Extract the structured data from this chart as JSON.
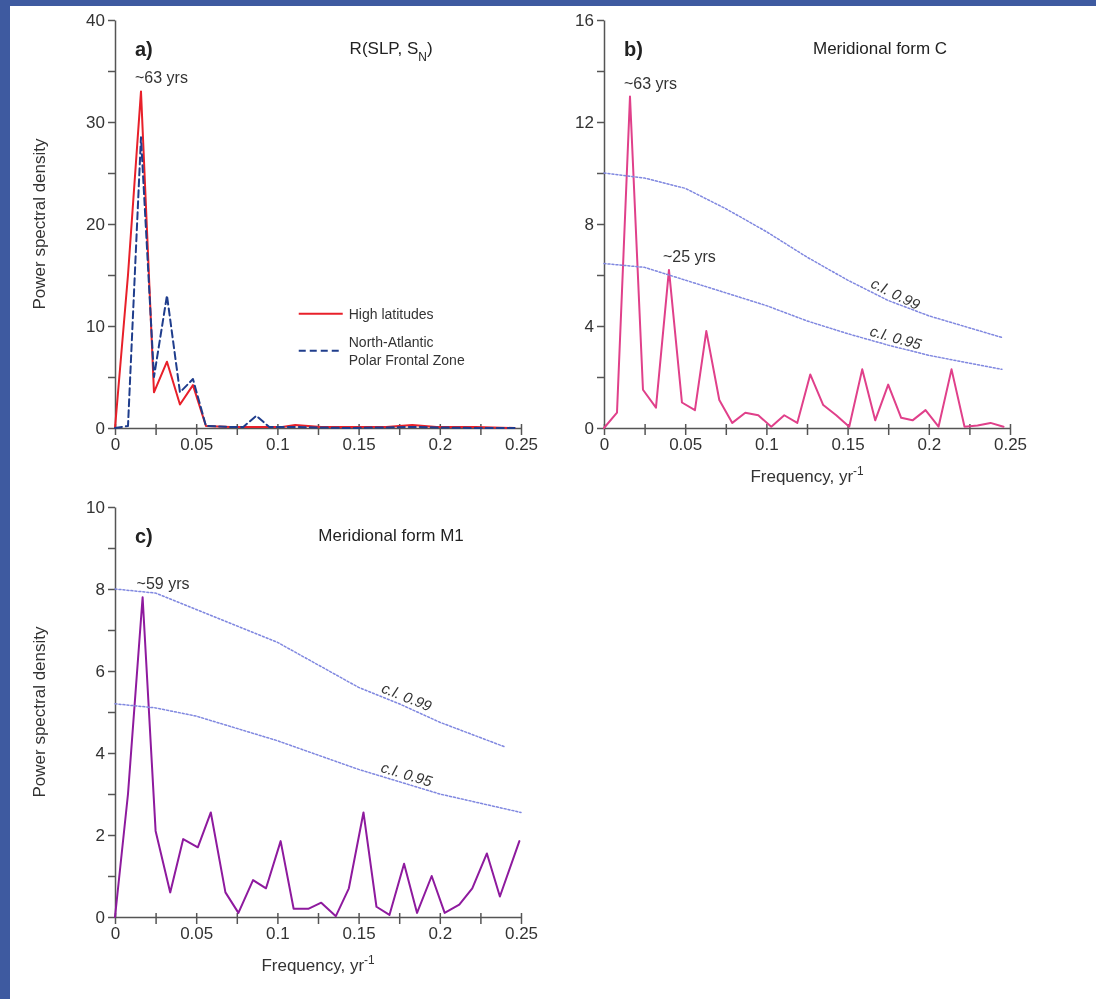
{
  "chart_data": [
    {
      "type": "line",
      "title": "R(SLP, S$_{N}$)",
      "ylabel": "Power spectral density",
      "xlim": [
        0,
        0.25
      ],
      "ylim": [
        0,
        40
      ],
      "xticks": [
        0,
        {
          "value": 0.025,
          "label": null
        },
        0.05,
        {
          "value": 0.075,
          "label": null
        },
        0.1,
        {
          "value": 0.125,
          "label": null
        },
        0.15,
        {
          "value": 0.175,
          "label": null
        },
        0.2,
        {
          "value": 0.225,
          "label": null
        },
        0.25
      ],
      "yticks": [
        0,
        {
          "value": 5,
          "label": null
        },
        10,
        {
          "value": 15,
          "label": null
        },
        20,
        {
          "value": 25,
          "label": null
        },
        30,
        {
          "value": 35,
          "label": null
        },
        40
      ],
      "legend": "right",
      "annotations": [
        "a)",
        {
          "text": "~63 yrs",
          "x": 0.016,
          "y": 33
        }
      ],
      "series": [
        {
          "name": "High latitudes",
          "color": "#e8202a",
          "line_style": "solid",
          "x": [
            0,
            0.008,
            0.016,
            0.024,
            0.032,
            0.04,
            0.048,
            0.056,
            0.071,
            0.087,
            0.103,
            0.111,
            0.127,
            0.143,
            0.167,
            0.183,
            0.198,
            0.222,
            0.246
          ],
          "values": [
            0,
            15,
            33,
            3.5,
            6.5,
            2.3,
            4.2,
            0.2,
            0.1,
            0.1,
            0.1,
            0.3,
            0.1,
            0.1,
            0.1,
            0.3,
            0.1,
            0.1,
            0
          ]
        },
        {
          "name": "North-Atlantic Polar Frontal Zone",
          "color": "#1f3d8c",
          "line_style": "dashed",
          "x": [
            0,
            0.008,
            0.016,
            0.024,
            0.032,
            0.04,
            0.048,
            0.056,
            0.071,
            0.079,
            0.087,
            0.095,
            0.111,
            0.143,
            0.183,
            0.222,
            0.246
          ],
          "values": [
            0,
            0.2,
            28.5,
            5,
            13,
            3.5,
            4.8,
            0.2,
            0.1,
            0.1,
            1.2,
            0.1,
            0.1,
            0,
            0.1,
            0,
            0
          ]
        }
      ]
    },
    {
      "type": "line",
      "title": "Meridional form C",
      "xlabel": "Frequency, yr$^{-1}$",
      "xlim": [
        0,
        0.25
      ],
      "ylim": [
        0,
        16
      ],
      "xticks": [
        0,
        {
          "value": 0.025,
          "label": null
        },
        0.05,
        {
          "value": 0.075,
          "label": null
        },
        0.1,
        {
          "value": 0.125,
          "label": null
        },
        0.15,
        {
          "value": 0.175,
          "label": null
        },
        0.2,
        {
          "value": 0.225,
          "label": null
        },
        0.25
      ],
      "yticks": [
        0,
        {
          "value": 2,
          "label": null
        },
        4,
        {
          "value": 6,
          "label": null
        },
        8,
        {
          "value": 10,
          "label": null
        },
        12,
        {
          "value": 14,
          "label": null
        },
        16
      ],
      "annotations": [
        "b)",
        {
          "text": "~63 yrs",
          "x": 0.016,
          "y": 13
        },
        {
          "text": "~25 yrs",
          "x": 0.04,
          "y": 6.2
        }
      ],
      "series": [
        {
          "color": "#e0408a",
          "line_style": "solid",
          "x": [
            0,
            0.008,
            0.016,
            0.024,
            0.032,
            0.04,
            0.048,
            0.056,
            0.063,
            0.071,
            0.079,
            0.087,
            0.095,
            0.103,
            0.111,
            0.119,
            0.127,
            0.135,
            0.143,
            0.151,
            0.159,
            0.167,
            0.175,
            0.183,
            0.19,
            0.198,
            0.206,
            0.214,
            0.222,
            0.23,
            0.238,
            0.246
          ],
          "values": [
            0,
            0.6,
            13,
            1.5,
            0.8,
            6.2,
            1,
            0.7,
            3.8,
            1.1,
            0.2,
            0.6,
            0.5,
            0.05,
            0.5,
            0.2,
            2.1,
            0.9,
            0.5,
            0.05,
            2.3,
            0.3,
            1.7,
            0.4,
            0.3,
            0.7,
            0.05,
            2.3,
            0.05,
            0.1,
            0.2,
            0.05
          ]
        },
        {
          "name": "c.l. 0.99",
          "color": "#8088e0",
          "line_style": "dotted",
          "x": [
            0,
            0.025,
            0.05,
            0.075,
            0.1,
            0.125,
            0.15,
            0.175,
            0.2,
            0.245
          ],
          "values": [
            10,
            9.8,
            9.4,
            8.6,
            7.7,
            6.7,
            5.8,
            5,
            4.4,
            3.55
          ]
        },
        {
          "name": "c.l. 0.95",
          "color": "#8088e0",
          "line_style": "dotted",
          "x": [
            0,
            0.025,
            0.05,
            0.075,
            0.1,
            0.125,
            0.15,
            0.175,
            0.2,
            0.245
          ],
          "values": [
            6.45,
            6.3,
            5.8,
            5.3,
            4.8,
            4.2,
            3.7,
            3.25,
            2.85,
            2.3
          ]
        }
      ]
    },
    {
      "type": "line",
      "title": "Meridional form M1",
      "xlabel": "Frequency, yr$^{-1}$",
      "ylabel": "Power spectral density",
      "xlim": [
        0,
        0.25
      ],
      "ylim": [
        0,
        10
      ],
      "xticks": [
        0,
        {
          "value": 0.025,
          "label": null
        },
        0.05,
        {
          "value": 0.075,
          "label": null
        },
        0.1,
        {
          "value": 0.125,
          "label": null
        },
        0.15,
        {
          "value": 0.175,
          "label": null
        },
        0.2,
        {
          "value": 0.225,
          "label": null
        },
        0.25
      ],
      "yticks": [
        0,
        {
          "value": 1,
          "label": null
        },
        2,
        {
          "value": 3,
          "label": null
        },
        4,
        {
          "value": 5,
          "label": null
        },
        6,
        {
          "value": 7,
          "label": null
        },
        8,
        {
          "value": 9,
          "label": null
        },
        10
      ],
      "annotations": [
        "c)",
        {
          "text": "~59 yrs",
          "x": 0.017,
          "y": 7.8
        }
      ],
      "series": [
        {
          "color": "#8e1a9e",
          "line_style": "solid",
          "x": [
            0,
            0.008,
            0.017,
            0.025,
            0.034,
            0.042,
            0.051,
            0.059,
            0.068,
            0.076,
            0.085,
            0.093,
            0.102,
            0.11,
            0.119,
            0.127,
            0.136,
            0.144,
            0.153,
            0.161,
            0.169,
            0.178,
            0.186,
            0.195,
            0.203,
            0.212,
            0.22,
            0.229,
            0.237,
            0.249
          ],
          "values": [
            0,
            3,
            7.8,
            2.1,
            0.6,
            1.9,
            1.7,
            2.55,
            0.6,
            0.1,
            0.9,
            0.7,
            1.85,
            0.2,
            0.2,
            0.35,
            0.02,
            0.7,
            2.55,
            0.25,
            0.05,
            1.3,
            0.1,
            1,
            0.1,
            0.3,
            0.7,
            1.55,
            0.5,
            1.85
          ]
        },
        {
          "name": "c.l. 0.99",
          "color": "#8088e0",
          "line_style": "dotted",
          "x": [
            0,
            0.025,
            0.05,
            0.075,
            0.1,
            0.125,
            0.15,
            0.175,
            0.2,
            0.24
          ],
          "values": [
            8,
            7.9,
            7.5,
            7.1,
            6.7,
            6.15,
            5.6,
            5.2,
            4.75,
            4.15
          ]
        },
        {
          "name": "c.l. 0.95",
          "color": "#8088e0",
          "line_style": "dotted",
          "x": [
            0,
            0.025,
            0.05,
            0.075,
            0.1,
            0.125,
            0.15,
            0.175,
            0.2,
            0.25
          ],
          "values": [
            5.2,
            5.1,
            4.9,
            4.6,
            4.3,
            3.95,
            3.6,
            3.3,
            3,
            2.55
          ]
        }
      ]
    }
  ]
}
